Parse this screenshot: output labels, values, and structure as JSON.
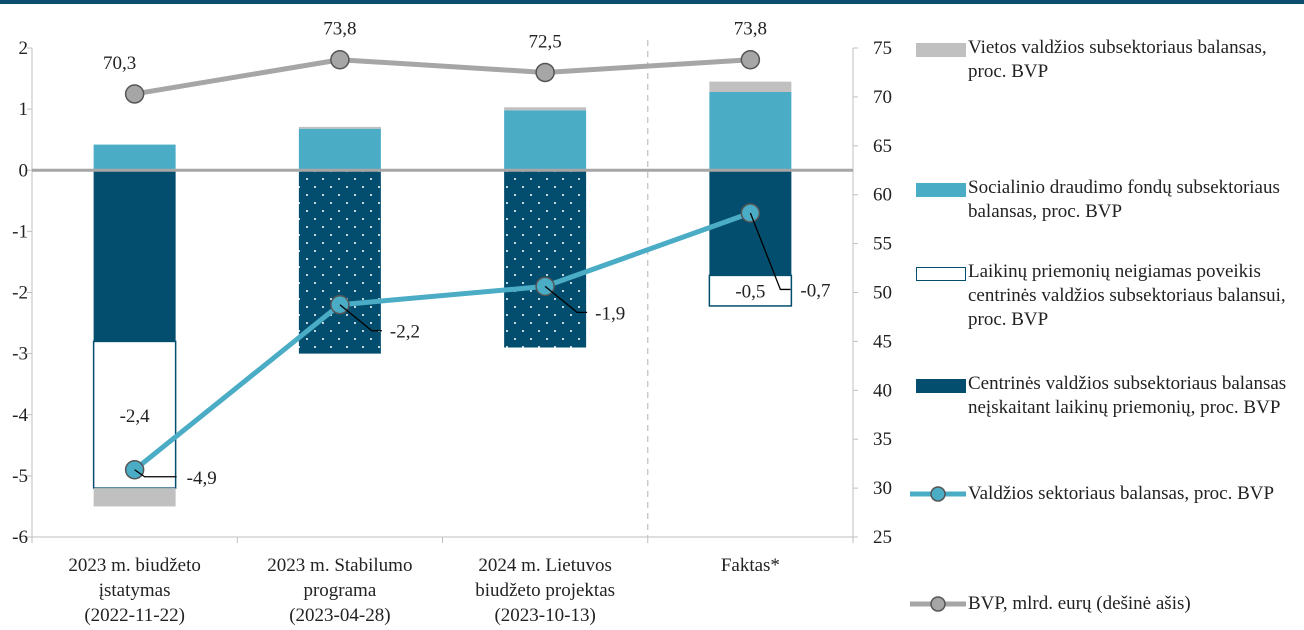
{
  "colors": {
    "local": "#c0c0c0",
    "social": "#4bacc6",
    "central": "#034e6e",
    "temporary_border": "#034e6e",
    "general_line": "#4bacc6",
    "gdp_line": "#a6a6a6",
    "header_bar": "#0d4d6e"
  },
  "chart_data": {
    "type": "bar",
    "stacked": true,
    "categories": [
      [
        "2023 m. biudžeto",
        "įstatymas",
        "(2022-11-22)"
      ],
      [
        "2023 m. Stabilumo",
        "programa",
        "(2023-04-28)"
      ],
      [
        "2024 m. Lietuvos",
        "biudžeto projektas",
        "(2023-10-13)"
      ],
      [
        "Faktas*"
      ]
    ],
    "left_axis": {
      "ylim": [
        -6,
        2
      ],
      "ticks": [
        "2",
        "1",
        "0",
        "-1",
        "-2",
        "-3",
        "-4",
        "-5",
        "-6"
      ]
    },
    "right_axis": {
      "ylim": [
        25,
        75
      ],
      "ticks": [
        "75",
        "70",
        "65",
        "60",
        "55",
        "50",
        "45",
        "40",
        "35",
        "30",
        "25"
      ]
    },
    "series": [
      {
        "name": "Vietos valdžios subsektoriaus balansas, proc. BVP",
        "kind": "bar",
        "style": "local",
        "values": [
          -0.3,
          0.03,
          0.05,
          0.17
        ]
      },
      {
        "name": "Socialinio draudimo fondų subsektoriaus balansas, proc. BVP",
        "kind": "bar",
        "style": "social",
        "values": [
          0.42,
          0.68,
          0.98,
          1.28
        ]
      },
      {
        "name": "Laikinų priemonių neigiamas poveikis centrinės valdžios subsektoriaus balansui, proc. BVP",
        "kind": "bar",
        "style": "temporary",
        "values": [
          -2.4,
          0,
          0,
          -0.5
        ],
        "data_labels": [
          "-2,4",
          "",
          "",
          "-0,5"
        ]
      },
      {
        "name": "Centrinės valdžios subsektoriaus balansas neįskaitant laikinų priemonių, proc. BVP",
        "kind": "bar",
        "style": "central",
        "values": [
          -2.8,
          -3.0,
          -2.9,
          -1.72
        ],
        "dotted": [
          false,
          true,
          true,
          false
        ]
      },
      {
        "name": "Valdžios sektoriaus balansas, proc. BVP",
        "kind": "line",
        "style": "general_line",
        "axis": "left",
        "values": [
          -4.9,
          -2.2,
          -1.9,
          -0.7
        ],
        "data_labels": [
          "-4,9",
          "-2,2",
          "-1,9",
          "-0,7"
        ]
      },
      {
        "name": "BVP, mlrd. eurų (dešinė ašis)",
        "kind": "line",
        "style": "gdp_line",
        "axis": "right",
        "values": [
          70.3,
          73.8,
          72.5,
          73.8
        ],
        "data_labels": [
          "70,3",
          "73,8",
          "72,5",
          "73,8"
        ]
      }
    ],
    "legend_position": "right",
    "grid": false
  }
}
